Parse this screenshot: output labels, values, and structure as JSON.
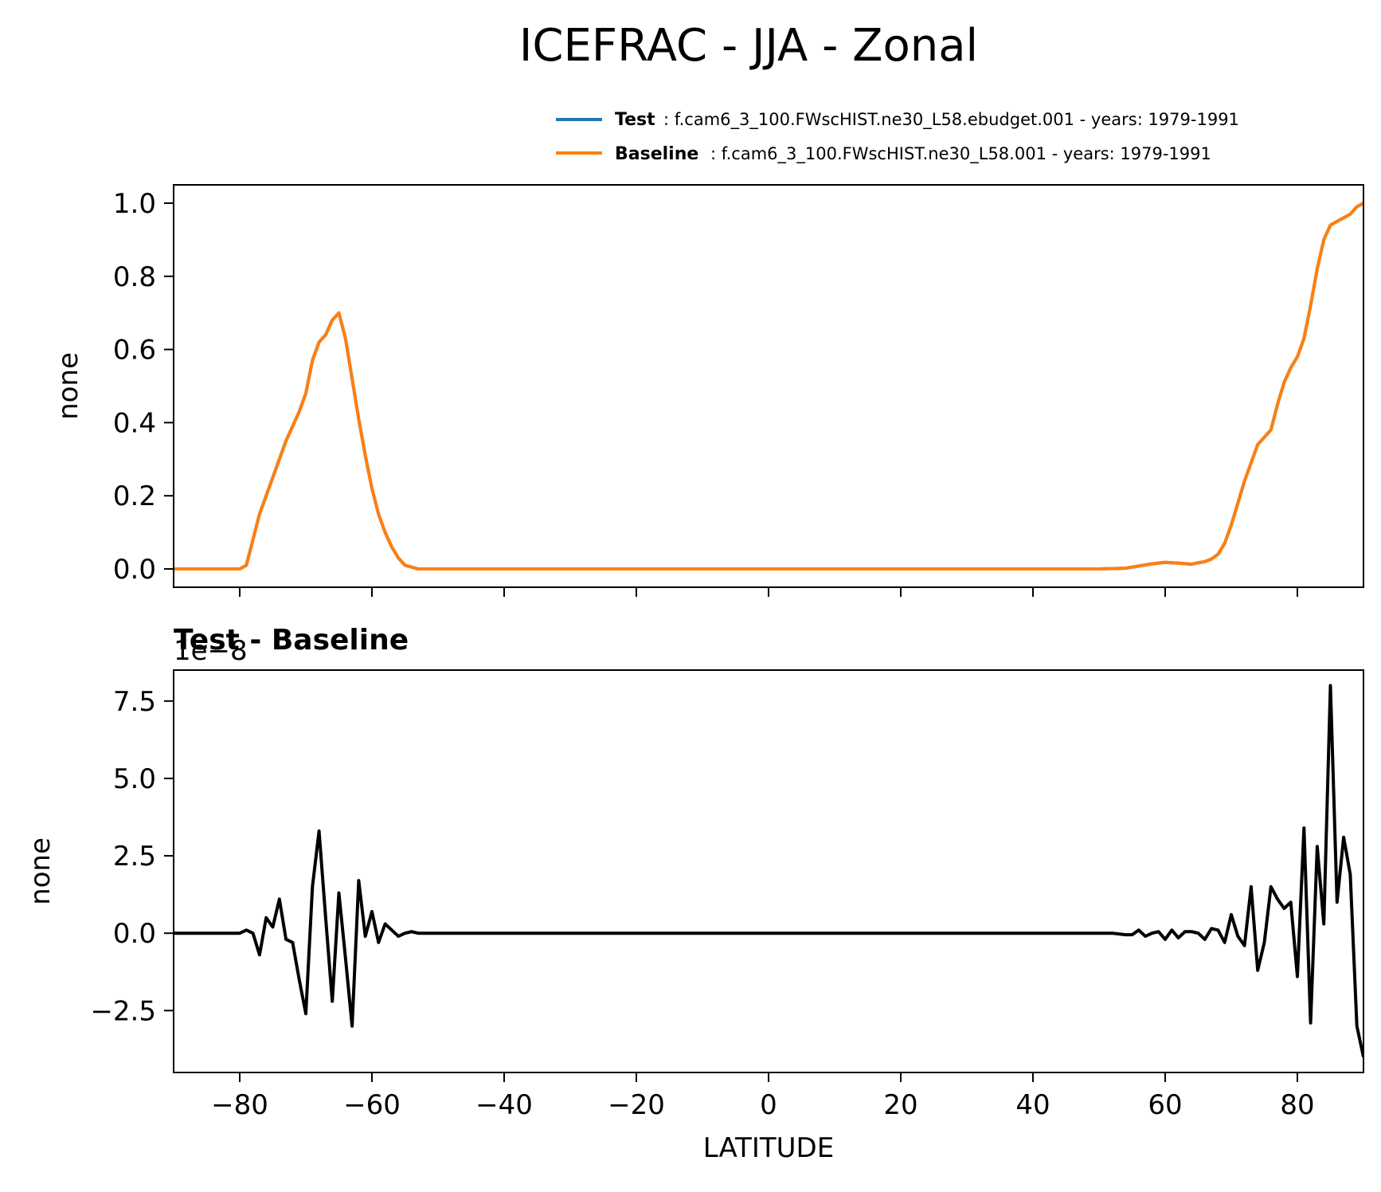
{
  "title": "ICEFRAC - JJA - Zonal",
  "legend": {
    "placement": "top-right above upper panel",
    "entries": [
      {
        "label": "Test",
        "desc": ": f.cam6_3_100.FWscHIST.ne30_L58.ebudget.001 - years: 1979-1991",
        "color": "#1f77b4"
      },
      {
        "label": "Baseline",
        "desc": ": f.cam6_3_100.FWscHIST.ne30_L58.001 - years: 1979-1991",
        "color": "#ff7f0e"
      }
    ]
  },
  "chart_data": [
    {
      "type": "line",
      "panel": "top",
      "title": "",
      "ylabel": "none",
      "xlabel": "",
      "xlim": [
        -90,
        90
      ],
      "ylim": [
        -0.05,
        1.05
      ],
      "xticks": [
        -80,
        -60,
        -40,
        -20,
        0,
        20,
        40,
        60,
        80
      ],
      "yticks": [
        0.0,
        0.2,
        0.4,
        0.6,
        0.8,
        1.0
      ],
      "ytick_labels": [
        "0.0",
        "0.2",
        "0.4",
        "0.6",
        "0.8",
        "1.0"
      ],
      "grid": false,
      "series": [
        {
          "name": "Baseline",
          "color": "#ff7f0e",
          "x": [
            -90,
            -80,
            -79,
            -78,
            -77,
            -76,
            -75,
            -74,
            -73,
            -72,
            -71,
            -70,
            -69,
            -68,
            -67,
            -66,
            -65,
            -64,
            -63,
            -62,
            -61,
            -60,
            -59,
            -58,
            -57,
            -56,
            -55,
            -54,
            -53,
            -50,
            -20,
            0,
            20,
            40,
            50,
            54,
            56,
            58,
            60,
            62,
            64,
            65,
            66,
            67,
            68,
            69,
            70,
            71,
            72,
            73,
            74,
            75,
            76,
            77,
            78,
            79,
            80,
            81,
            82,
            83,
            84,
            85,
            86,
            87,
            88,
            89,
            90
          ],
          "y": [
            0.0,
            0.0,
            0.01,
            0.08,
            0.15,
            0.2,
            0.25,
            0.3,
            0.35,
            0.39,
            0.43,
            0.48,
            0.57,
            0.62,
            0.64,
            0.68,
            0.7,
            0.63,
            0.52,
            0.41,
            0.31,
            0.22,
            0.15,
            0.1,
            0.06,
            0.03,
            0.01,
            0.005,
            0.0,
            0.0,
            0.0,
            0.0,
            0.0,
            0.0,
            0.0,
            0.002,
            0.008,
            0.014,
            0.018,
            0.016,
            0.013,
            0.017,
            0.02,
            0.027,
            0.04,
            0.07,
            0.12,
            0.18,
            0.24,
            0.29,
            0.34,
            0.36,
            0.38,
            0.45,
            0.51,
            0.55,
            0.58,
            0.63,
            0.72,
            0.82,
            0.9,
            0.94,
            0.95,
            0.96,
            0.97,
            0.99,
            1.0
          ]
        },
        {
          "name": "Test",
          "color": "#1f77b4",
          "x": [
            -90,
            -80,
            -79,
            -78,
            -77,
            -76,
            -75,
            -74,
            -73,
            -72,
            -71,
            -70,
            -69,
            -68,
            -67,
            -66,
            -65,
            -64,
            -63,
            -62,
            -61,
            -60,
            -59,
            -58,
            -57,
            -56,
            -55,
            -54,
            -53,
            -50,
            -20,
            0,
            20,
            40,
            50,
            54,
            56,
            58,
            60,
            62,
            64,
            65,
            66,
            67,
            68,
            69,
            70,
            71,
            72,
            73,
            74,
            75,
            76,
            77,
            78,
            79,
            80,
            81,
            82,
            83,
            84,
            85,
            86,
            87,
            88,
            89,
            90
          ],
          "y": [
            0.0,
            0.0,
            0.01,
            0.08,
            0.15,
            0.2,
            0.25,
            0.3,
            0.35,
            0.39,
            0.43,
            0.48,
            0.57,
            0.62,
            0.64,
            0.68,
            0.7,
            0.63,
            0.52,
            0.41,
            0.31,
            0.22,
            0.15,
            0.1,
            0.06,
            0.03,
            0.01,
            0.005,
            0.0,
            0.0,
            0.0,
            0.0,
            0.0,
            0.0,
            0.0,
            0.002,
            0.008,
            0.014,
            0.018,
            0.016,
            0.013,
            0.017,
            0.02,
            0.027,
            0.04,
            0.07,
            0.12,
            0.18,
            0.24,
            0.29,
            0.34,
            0.36,
            0.38,
            0.45,
            0.51,
            0.55,
            0.58,
            0.63,
            0.72,
            0.82,
            0.9,
            0.94,
            0.95,
            0.96,
            0.97,
            0.99,
            1.0
          ]
        }
      ]
    },
    {
      "type": "line",
      "panel": "bottom",
      "title": "Test - Baseline",
      "offset_label": "1e−8",
      "ylabel": "none",
      "xlabel": "LATITUDE",
      "xlim": [
        -90,
        90
      ],
      "ylim": [
        -4.5,
        8.5
      ],
      "xticks": [
        -80,
        -60,
        -40,
        -20,
        0,
        20,
        40,
        60,
        80
      ],
      "xtick_labels": [
        "−80",
        "−60",
        "−40",
        "−20",
        "0",
        "20",
        "40",
        "60",
        "80"
      ],
      "yticks": [
        -2.5,
        0.0,
        2.5,
        5.0,
        7.5
      ],
      "ytick_labels": [
        "−2.5",
        "0.0",
        "2.5",
        "5.0",
        "7.5"
      ],
      "grid": false,
      "series": [
        {
          "name": "Test - Baseline",
          "color": "#000000",
          "x": [
            -90,
            -80,
            -79,
            -78,
            -77,
            -76,
            -75,
            -74,
            -73,
            -72,
            -71,
            -70,
            -69,
            -68,
            -67,
            -66,
            -65,
            -64,
            -63,
            -62,
            -61,
            -60,
            -59,
            -58,
            -57,
            -56,
            -55,
            -54,
            -53,
            -50,
            0,
            52,
            54,
            55,
            56,
            57,
            58,
            59,
            60,
            61,
            62,
            63,
            64,
            65,
            66,
            67,
            68,
            69,
            70,
            71,
            72,
            73,
            74,
            75,
            76,
            77,
            78,
            79,
            80,
            81,
            82,
            83,
            84,
            85,
            86,
            87,
            88,
            89,
            90
          ],
          "y": [
            0.0,
            0.0,
            0.1,
            0.0,
            -0.7,
            0.5,
            0.2,
            1.1,
            -0.2,
            -0.3,
            -1.5,
            -2.6,
            1.5,
            3.3,
            0.5,
            -2.2,
            1.3,
            -0.8,
            -3.0,
            1.7,
            -0.1,
            0.7,
            -0.3,
            0.3,
            0.1,
            -0.1,
            0.0,
            0.05,
            0.0,
            0.0,
            0.0,
            0.0,
            -0.05,
            -0.05,
            0.1,
            -0.1,
            0.0,
            0.05,
            -0.2,
            0.1,
            -0.15,
            0.05,
            0.05,
            0.0,
            -0.2,
            0.15,
            0.1,
            -0.3,
            0.6,
            -0.1,
            -0.4,
            1.5,
            -1.2,
            -0.3,
            1.5,
            1.1,
            0.8,
            1.0,
            -1.4,
            3.4,
            -2.9,
            2.8,
            0.3,
            8.0,
            1.0,
            3.1,
            1.9,
            -3.0,
            -4.0
          ]
        }
      ]
    }
  ]
}
